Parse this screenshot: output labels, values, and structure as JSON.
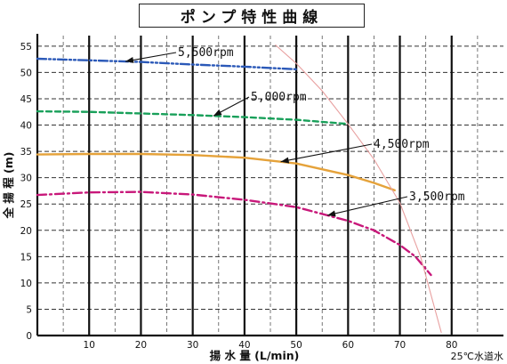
{
  "chart_data": {
    "type": "line",
    "title": "ポンプ特性曲線",
    "xlabel": "揚 水 量 (L/min)",
    "ylabel": "全 揚 程 (m)",
    "note": "25℃水道水",
    "xlim": [
      0,
      90
    ],
    "ylim": [
      0,
      57
    ],
    "xticks": [
      10,
      20,
      30,
      40,
      50,
      60,
      70,
      80
    ],
    "yticks": [
      0,
      5,
      10,
      15,
      20,
      25,
      30,
      35,
      40,
      45,
      50,
      55
    ],
    "grid": true,
    "series": [
      {
        "name": "5,500rpm",
        "color": "#2b59b8",
        "dash": "dashdotdot",
        "x": [
          0,
          10,
          20,
          30,
          40,
          50
        ],
        "y": [
          52.6,
          52.3,
          52.0,
          51.5,
          51.1,
          50.6
        ]
      },
      {
        "name": "5,000rpm",
        "color": "#19a05a",
        "dash": "dash",
        "x": [
          0,
          10,
          20,
          30,
          40,
          50,
          60
        ],
        "y": [
          42.6,
          42.5,
          42.2,
          41.9,
          41.5,
          41.0,
          40.2
        ]
      },
      {
        "name": "4,500rpm",
        "color": "#e5a23a",
        "dash": "solid",
        "x": [
          0,
          10,
          20,
          30,
          40,
          50,
          60,
          65,
          69
        ],
        "y": [
          34.4,
          34.5,
          34.5,
          34.3,
          33.8,
          32.7,
          30.5,
          29.0,
          27.6
        ]
      },
      {
        "name": "3,500rpm",
        "color": "#c8187a",
        "dash": "dashdot",
        "x": [
          0,
          10,
          20,
          30,
          40,
          50,
          60,
          65,
          70,
          73,
          76
        ],
        "y": [
          26.7,
          27.2,
          27.3,
          26.8,
          25.8,
          24.4,
          21.8,
          20.0,
          17.2,
          15.0,
          11.5
        ]
      },
      {
        "name": "",
        "color": "#e8a0a0",
        "dash": "solid",
        "x": [
          46,
          50,
          55,
          60,
          65,
          70,
          74,
          78
        ],
        "y": [
          55.2,
          51.7,
          46.5,
          40.2,
          33.5,
          25.2,
          15.0,
          0.6
        ]
      }
    ],
    "annotations": [
      {
        "text": "5,500rpm",
        "series": 0,
        "at_x": 17
      },
      {
        "text": "5,000rpm",
        "series": 1,
        "at_x": 34
      },
      {
        "text": "4,500rpm",
        "series": 2,
        "at_x": 47
      },
      {
        "text": "3,500rpm",
        "series": 3,
        "at_x": 56
      }
    ]
  }
}
